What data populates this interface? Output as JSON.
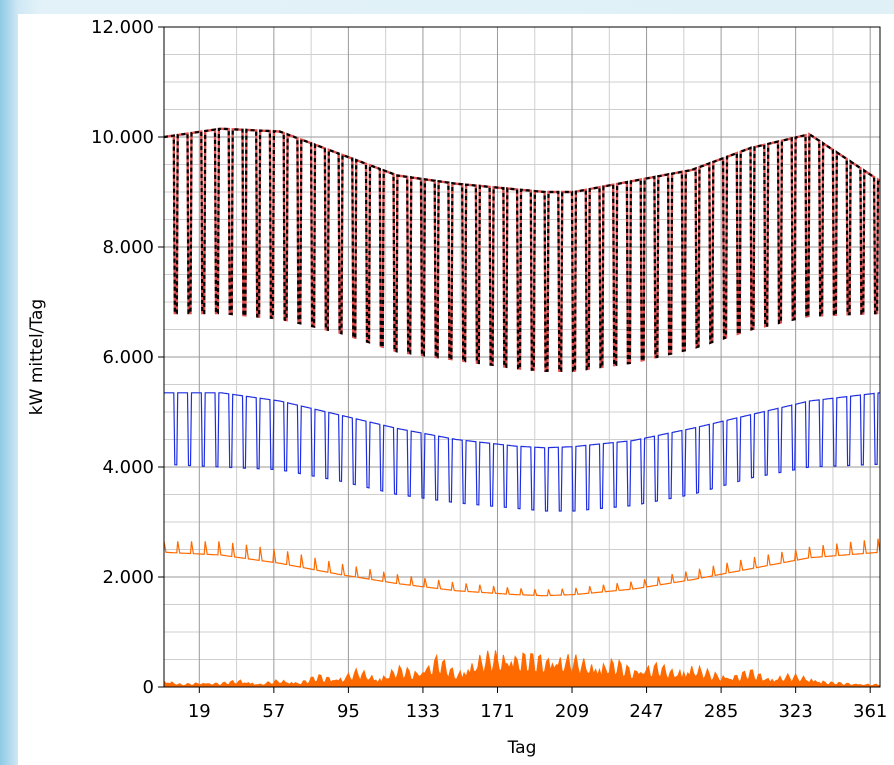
{
  "chart_data": {
    "type": "line",
    "title": "",
    "xlabel": "Tag",
    "ylabel": "kW mittel/Tag",
    "xlim": [
      1,
      366
    ],
    "ylim": [
      0,
      12000
    ],
    "grid": true,
    "x_tick_values": [
      19,
      57,
      95,
      133,
      171,
      209,
      247,
      285,
      323,
      361
    ],
    "x_tick_labels": [
      "19",
      "57",
      "95",
      "133",
      "171",
      "209",
      "247",
      "285",
      "323",
      "361"
    ],
    "y_tick_values": [
      0,
      2000,
      4000,
      6000,
      8000,
      10000,
      12000
    ],
    "y_tick_labels": [
      "0",
      "2.000",
      "4.000",
      "6.000",
      "8.000",
      "10.000",
      "12.000"
    ],
    "series": [
      {
        "color": "#ff6a00",
        "style": "area",
        "x": [
          1,
          10,
          20,
          30,
          40,
          50,
          60,
          70,
          80,
          90,
          100,
          110,
          120,
          130,
          140,
          150,
          160,
          170,
          180,
          190,
          200,
          210,
          220,
          230,
          240,
          250,
          260,
          270,
          280,
          290,
          300,
          310,
          320,
          330,
          340,
          350,
          360,
          366
        ],
        "values": [
          150,
          50,
          100,
          80,
          150,
          60,
          150,
          100,
          250,
          200,
          350,
          200,
          400,
          350,
          650,
          300,
          600,
          700,
          750,
          650,
          700,
          600,
          500,
          550,
          400,
          500,
          350,
          450,
          300,
          250,
          350,
          200,
          250,
          200,
          100,
          80,
          60,
          50
        ]
      },
      {
        "color": "#ff6a00",
        "style": "line",
        "x": [
          1,
          30,
          60,
          90,
          120,
          150,
          180,
          195,
          210,
          240,
          270,
          300,
          330,
          366
        ],
        "base": [
          2450,
          2400,
          2250,
          2050,
          1880,
          1750,
          1680,
          1660,
          1680,
          1780,
          1950,
          2150,
          2350,
          2450
        ],
        "peak": [
          2650,
          2650,
          2500,
          2250,
          2050,
          1900,
          1800,
          1770,
          1800,
          1920,
          2120,
          2350,
          2550,
          2700
        ]
      },
      {
        "color": "#1f2fe0",
        "style": "line",
        "x": [
          1,
          30,
          60,
          90,
          120,
          150,
          180,
          195,
          210,
          240,
          270,
          300,
          330,
          366
        ],
        "base": [
          4050,
          4000,
          3950,
          3750,
          3500,
          3350,
          3250,
          3200,
          3200,
          3300,
          3500,
          3800,
          4000,
          4050
        ],
        "peak": [
          5350,
          5350,
          5200,
          4950,
          4700,
          4500,
          4380,
          4350,
          4370,
          4480,
          4700,
          4950,
          5200,
          5350
        ]
      },
      {
        "color": "#e05050",
        "style": "line",
        "x": [
          1,
          30,
          60,
          90,
          120,
          150,
          180,
          195,
          210,
          240,
          270,
          300,
          330,
          366
        ],
        "base": [
          6800,
          6800,
          6700,
          6450,
          6100,
          5950,
          5800,
          5750,
          5750,
          5900,
          6150,
          6500,
          6750,
          6800
        ],
        "peak": [
          10000,
          10150,
          10100,
          9700,
          9300,
          9150,
          9050,
          9000,
          9000,
          9200,
          9400,
          9800,
          10050,
          9200
        ]
      },
      {
        "color": "#000000",
        "style": "dashed",
        "x": [
          1,
          30,
          60,
          90,
          120,
          150,
          180,
          195,
          210,
          240,
          270,
          300,
          330,
          366
        ],
        "base": [
          6800,
          6800,
          6700,
          6450,
          6100,
          5950,
          5800,
          5750,
          5750,
          5900,
          6150,
          6500,
          6750,
          6800
        ],
        "peak": [
          10000,
          10150,
          10100,
          9700,
          9300,
          9150,
          9050,
          9000,
          9000,
          9200,
          9400,
          9800,
          10050,
          9200
        ]
      }
    ],
    "period_days": 7
  }
}
